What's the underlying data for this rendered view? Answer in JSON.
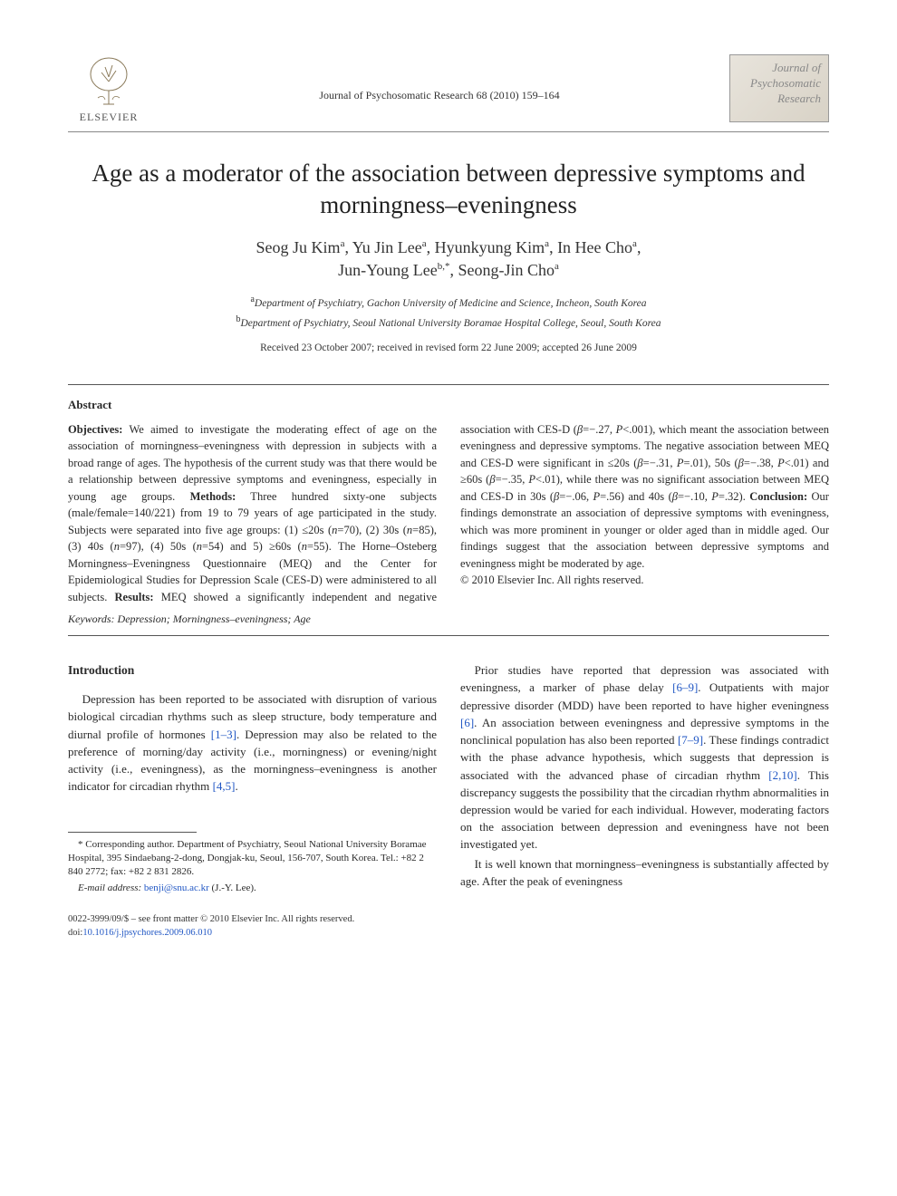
{
  "header": {
    "publisher": "ELSEVIER",
    "journal_ref": "Journal of Psychosomatic Research 68 (2010) 159–164",
    "journal_logo_lines": [
      "Journal of",
      "Psychosomatic",
      "Research"
    ]
  },
  "title": "Age as a moderator of the association between depressive symptoms and morningness–eveningness",
  "authors_html": "Seog Ju Kim<sup>a</sup>, Yu Jin Lee<sup>a</sup>, Hyunkyung Kim<sup>a</sup>, In Hee Cho<sup>a</sup>,<br>Jun-Young Lee<sup>b,*</sup>, Seong-Jin Cho<sup>a</sup>",
  "affiliations": [
    {
      "sup": "a",
      "text": "Department of Psychiatry, Gachon University of Medicine and Science, Incheon, South Korea"
    },
    {
      "sup": "b",
      "text": "Department of Psychiatry, Seoul National University Boramae Hospital College, Seoul, South Korea"
    }
  ],
  "dates": "Received 23 October 2007; received in revised form 22 June 2009; accepted 26 June 2009",
  "abstract": {
    "label": "Abstract",
    "body_html": "<b>Objectives:</b> We aimed to investigate the moderating effect of age on the association of morningness–eveningness with depression in subjects with a broad range of ages. The hypothesis of the current study was that there would be a relationship between depressive symptoms and eveningness, especially in young age groups. <b>Methods:</b> Three hundred sixty-one subjects (male/female=140/221) from 19 to 79 years of age participated in the study. Subjects were separated into five age groups: (1) ≤20s (<i>n</i>=70), (2) 30s (<i>n</i>=85), (3) 40s (<i>n</i>=97), (4) 50s (<i>n</i>=54) and 5) ≥60s (<i>n</i>=55). The Horne–Osteberg Morningness–Eveningness Questionnaire (MEQ) and the Center for Epidemiological Studies for Depression Scale (CES-D) were administered to all subjects. <b>Results:</b> MEQ showed a significantly independent and negative association with CES-D (<i>β</i>=−.27, <i>P</i>&lt;.001), which meant the association between eveningness and depressive symptoms. The negative association between MEQ and CES-D were significant in ≤20s (<i>β</i>=−.31, <i>P</i>=.01), 50s (<i>β</i>=−.38, <i>P</i>&lt;.01) and ≥60s (<i>β</i>=−.35, <i>P</i>&lt;.01), while there was no significant association between MEQ and CES-D in 30s (<i>β</i>=−.06, <i>P</i>=.56) and 40s (<i>β</i>=−.10, <i>P</i>=.32). <b>Conclusion:</b> Our findings demonstrate an association of depressive symptoms with eveningness, which was more prominent in younger or older aged than in middle aged. Our findings suggest that the association between depressive symptoms and eveningness might be moderated by age.",
    "copyright": "© 2010 Elsevier Inc. All rights reserved."
  },
  "keywords": "Keywords: Depression; Morningness–eveningness; Age",
  "body": {
    "intro_heading": "Introduction",
    "p1_html": "Depression has been reported to be associated with disruption of various biological circadian rhythms such as sleep structure, body temperature and diurnal profile of hormones <span class='cite'>[1–3]</span>. Depression may also be related to the preference of morning/day activity (i.e., morningness) or evening/night activity (i.e., eveningness), as the morningness–eveningness is another indicator for circadian rhythm <span class='cite'>[4,5]</span>.",
    "p2_html": "Prior studies have reported that depression was associated with eveningness, a marker of phase delay <span class='cite'>[6–9]</span>. Outpatients with major depressive disorder (MDD) have been reported to have higher eveningness <span class='cite'>[6]</span>. An association between eveningness and depressive symptoms in the nonclinical population has also been reported <span class='cite'>[7–9]</span>. These findings contradict with the phase advance hypothesis, which suggests that depression is associated with the advanced phase of circadian rhythm <span class='cite'>[2,10]</span>. This discrepancy suggests the possibility that the circadian rhythm abnormalities in depression would be varied for each individual. However, moderating factors on the association between depression and eveningness have not been investigated yet.",
    "p3_html": "It is well known that morningness–eveningness is substantially affected by age. After the peak of eveningness"
  },
  "footnote": {
    "corr_html": "* Corresponding author. Department of Psychiatry, Seoul National University Boramae Hospital, 395 Sindaebang-2-dong, Dongjak-ku, Seoul, 156-707, South Korea. Tel.: +82 2 840 2772; fax: +82 2 831 2826.",
    "email_label": "E-mail address:",
    "email": "benji@snu.ac.kr",
    "email_suffix": " (J.-Y. Lee)."
  },
  "footer": {
    "line1": "0022-3999/09/$ – see front matter © 2010 Elsevier Inc. All rights reserved.",
    "doi_label": "doi:",
    "doi": "10.1016/j.jpsychores.2009.06.010"
  },
  "colors": {
    "link": "#2157c4",
    "text": "#2a2a2a",
    "rule": "#888888"
  }
}
